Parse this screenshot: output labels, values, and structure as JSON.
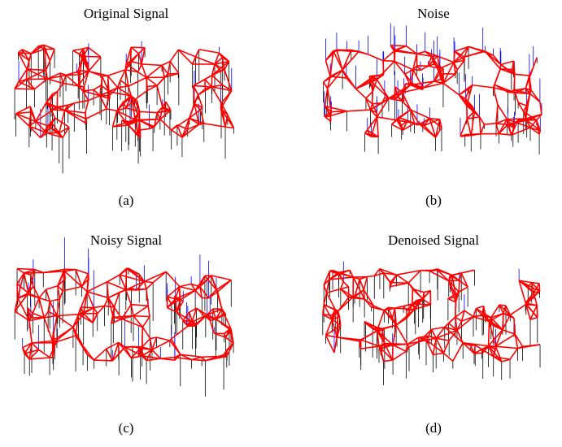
{
  "figure": {
    "panels": [
      {
        "title": "Original Signal",
        "caption": "(a)"
      },
      {
        "title": "Noise",
        "caption": "(b)"
      },
      {
        "title": "Noisy Signal",
        "caption": "(c)"
      },
      {
        "title": "Denoised Signal",
        "caption": "(d)"
      }
    ]
  }
}
